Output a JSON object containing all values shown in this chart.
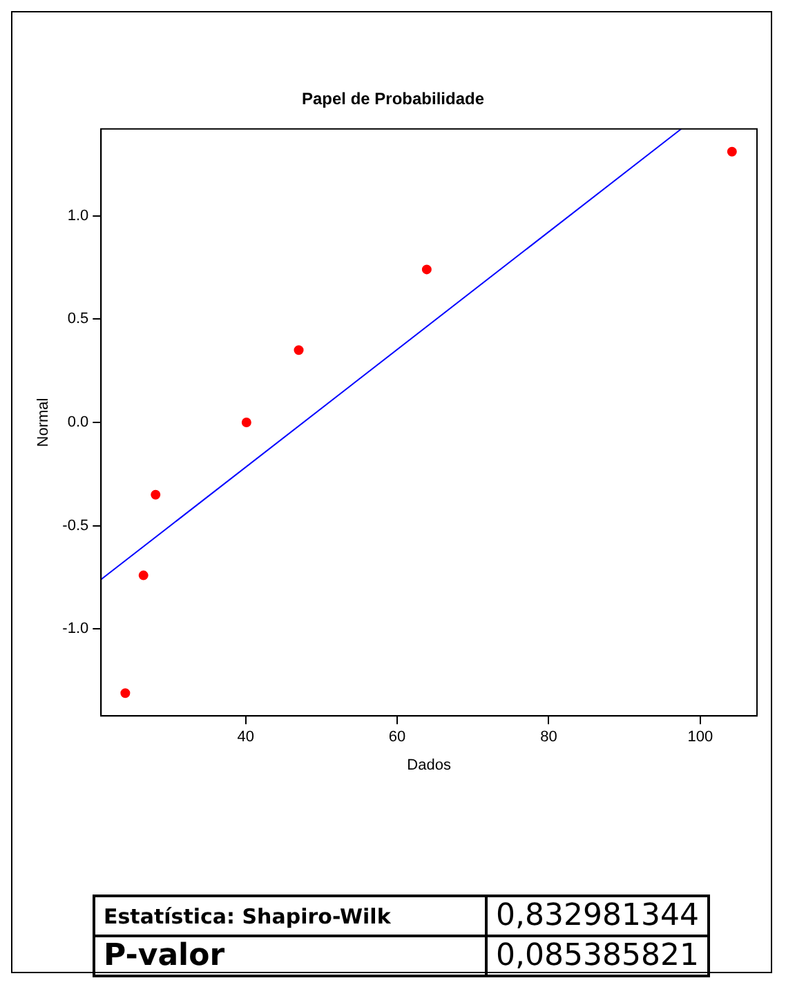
{
  "chart_data": {
    "type": "scatter",
    "title": "Papel de Probabilidade",
    "xlabel": "Dados",
    "ylabel": "Normal",
    "series": [
      {
        "color": "#ff0000",
        "x": [
          24.1,
          26.5,
          28.1,
          40.1,
          47.0,
          63.9,
          104.2
        ],
        "values": [
          -1.31,
          -0.74,
          -0.35,
          0.0,
          0.35,
          0.74,
          1.31
        ]
      },
      {
        "type": "line",
        "marker": "none",
        "color": "#0000ff",
        "x": [
          20.9,
          97.5
        ],
        "values": [
          -0.76,
          1.42
        ]
      }
    ],
    "xlim": [
      20.9,
      107.5
    ],
    "ylim": [
      -1.42,
      1.42
    ],
    "xticks": [
      40,
      60,
      80,
      100
    ],
    "yticks": [
      {
        "value": -1.0,
        "label": "-1.0"
      },
      {
        "value": -0.5,
        "label": "-0.5"
      },
      {
        "value": 0,
        "label": "0.0"
      },
      {
        "value": 0.5,
        "label": "0.5"
      },
      {
        "value": 1.0,
        "label": "1.0"
      }
    ],
    "grid": false,
    "legend": false,
    "marker": "circle",
    "annotations": [
      "Estatística: Shapiro-Wilk",
      "0,832981344",
      "P-valor",
      "0,085385821"
    ]
  }
}
